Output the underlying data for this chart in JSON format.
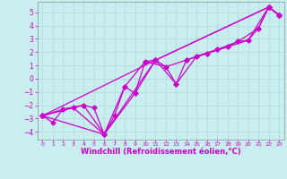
{
  "xlabel": "Windchill (Refroidissement éolien,°C)",
  "background_color": "#c8eef0",
  "grid_color": "#b0d8dc",
  "line_color": "#cc00cc",
  "xlim": [
    -0.5,
    23.5
  ],
  "ylim": [
    -4.6,
    5.8
  ],
  "yticks": [
    -4,
    -3,
    -2,
    -1,
    0,
    1,
    2,
    3,
    4,
    5
  ],
  "xticks": [
    0,
    1,
    2,
    3,
    4,
    5,
    6,
    7,
    8,
    9,
    10,
    11,
    12,
    13,
    14,
    15,
    16,
    17,
    18,
    19,
    20,
    21,
    22,
    23
  ],
  "series_main": [
    [
      0,
      -2.8
    ],
    [
      1,
      -3.3
    ],
    [
      2,
      -2.3
    ],
    [
      3,
      -2.2
    ],
    [
      4,
      -2.0
    ],
    [
      5,
      -2.2
    ],
    [
      6,
      -4.2
    ],
    [
      7,
      -2.8
    ],
    [
      8,
      -0.6
    ],
    [
      9,
      -1.1
    ],
    [
      10,
      1.3
    ],
    [
      11,
      1.4
    ],
    [
      12,
      0.9
    ],
    [
      13,
      -0.4
    ],
    [
      14,
      1.4
    ],
    [
      15,
      1.7
    ],
    [
      16,
      1.9
    ],
    [
      17,
      2.2
    ],
    [
      18,
      2.4
    ],
    [
      19,
      2.8
    ],
    [
      20,
      2.9
    ],
    [
      21,
      3.8
    ],
    [
      22,
      5.4
    ],
    [
      23,
      4.8
    ]
  ],
  "series_smooth1": [
    [
      0,
      -2.8
    ],
    [
      2,
      -2.3
    ],
    [
      4,
      -2.0
    ],
    [
      6,
      -4.2
    ],
    [
      8,
      -0.6
    ],
    [
      10,
      1.3
    ],
    [
      12,
      0.9
    ],
    [
      14,
      1.4
    ],
    [
      16,
      1.9
    ],
    [
      18,
      2.4
    ],
    [
      20,
      2.9
    ],
    [
      22,
      5.4
    ],
    [
      23,
      4.8
    ]
  ],
  "series_smooth2": [
    [
      0,
      -2.8
    ],
    [
      3,
      -2.2
    ],
    [
      6,
      -4.2
    ],
    [
      9,
      -1.1
    ],
    [
      11,
      1.4
    ],
    [
      13,
      -0.4
    ],
    [
      15,
      1.7
    ],
    [
      17,
      2.2
    ],
    [
      19,
      2.8
    ],
    [
      21,
      3.8
    ],
    [
      22,
      5.4
    ],
    [
      23,
      4.8
    ]
  ],
  "series_trend": [
    [
      0,
      -2.8
    ],
    [
      6,
      -4.2
    ],
    [
      11,
      1.4
    ],
    [
      22,
      5.4
    ],
    [
      23,
      4.8
    ]
  ],
  "series_trend2": [
    [
      0,
      -2.8
    ],
    [
      11,
      1.4
    ],
    [
      22,
      5.4
    ],
    [
      23,
      4.8
    ]
  ]
}
